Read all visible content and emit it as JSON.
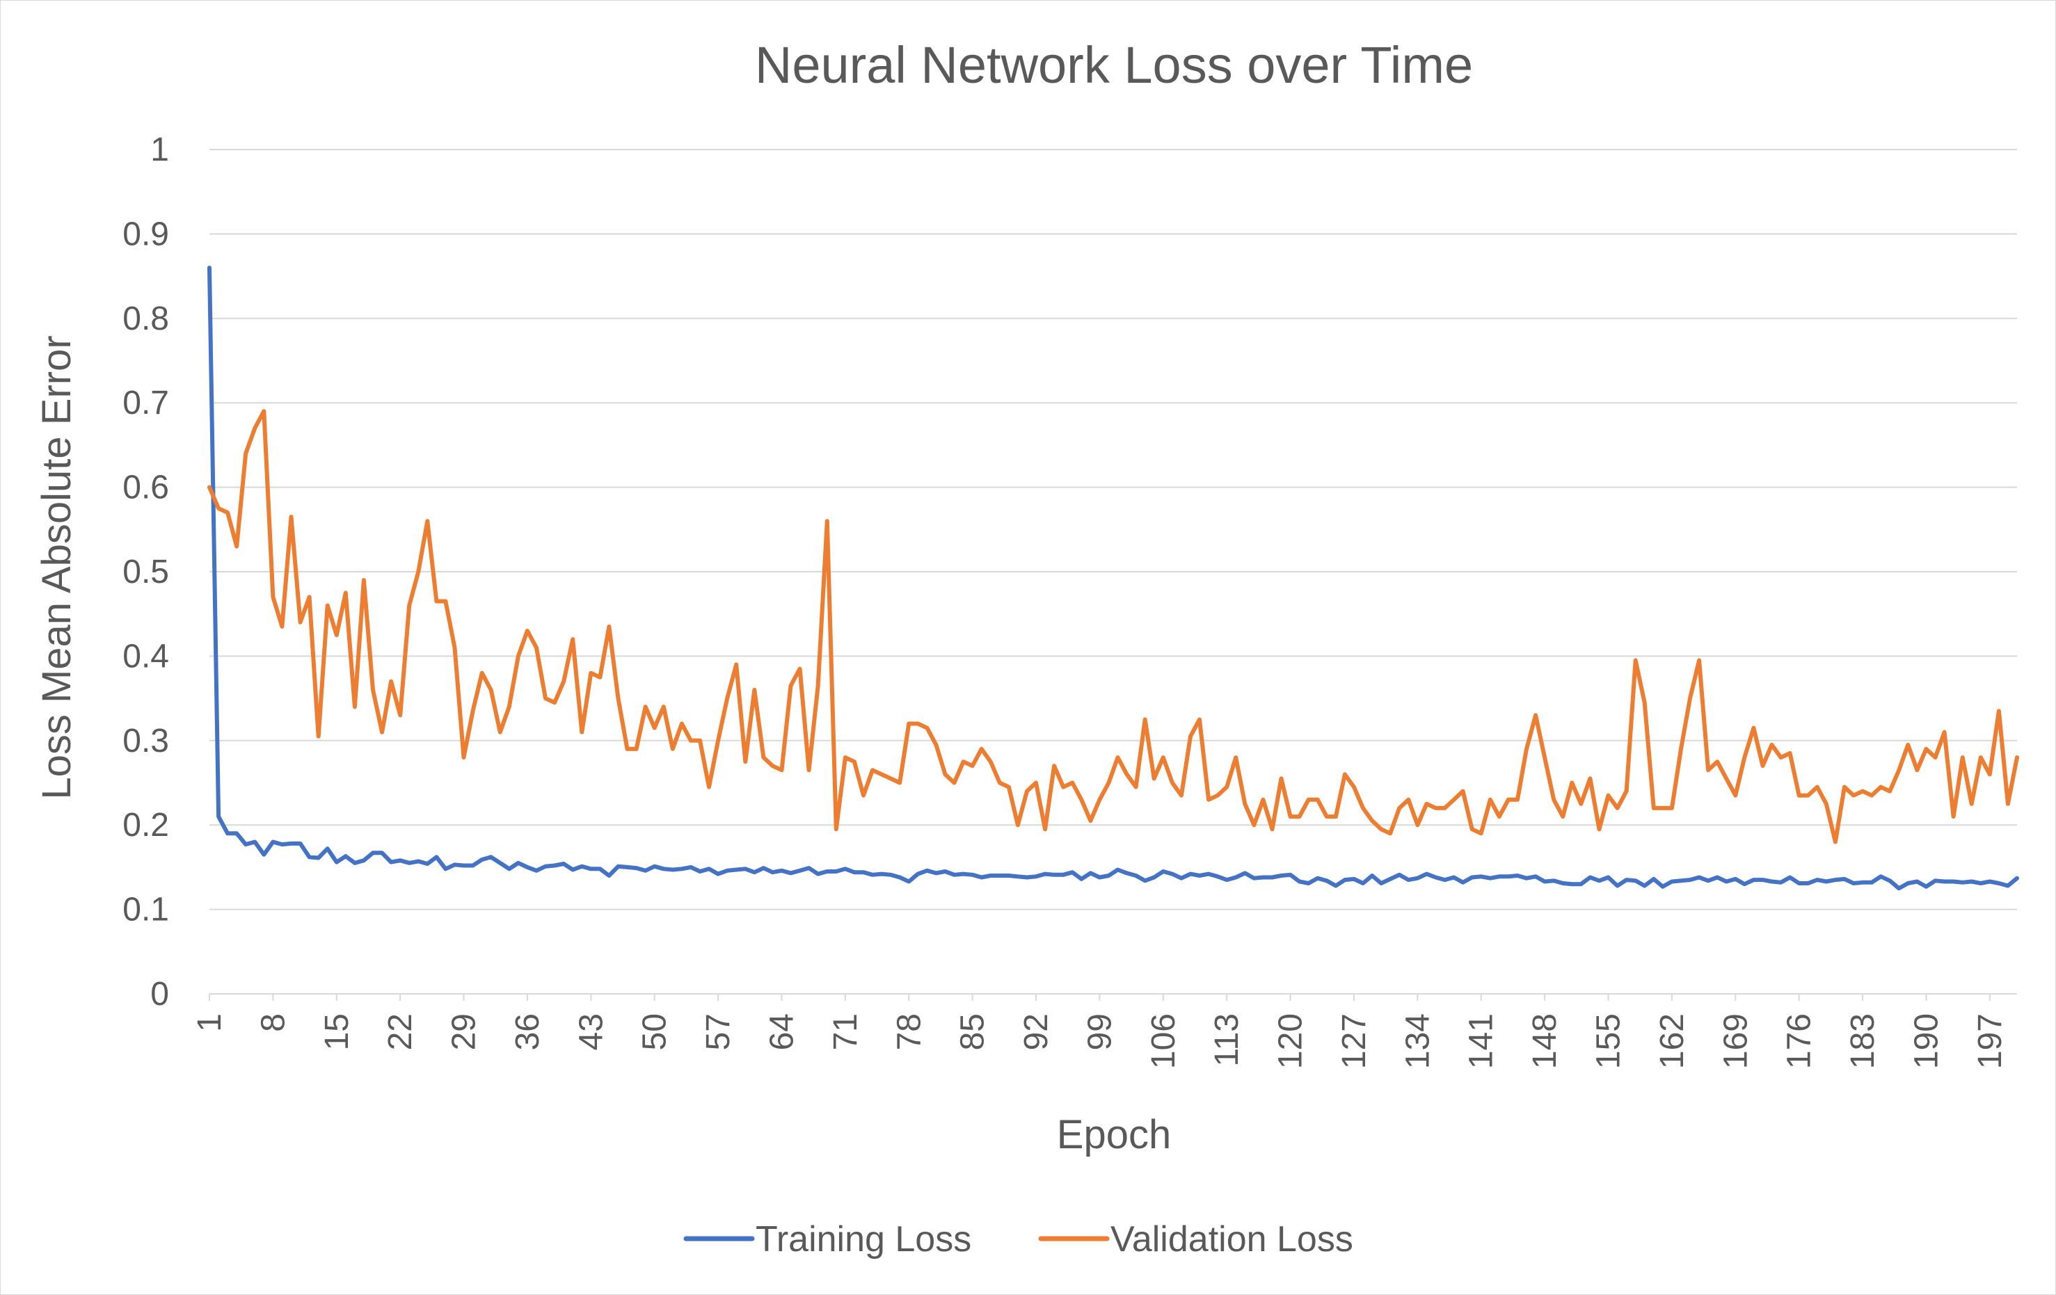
{
  "chart_data": {
    "type": "line",
    "title": "Neural Network Loss over Time",
    "xlabel": "Epoch",
    "ylabel": "Loss Mean Absolute Error",
    "x_range": [
      1,
      200
    ],
    "ylim": [
      0,
      1
    ],
    "y_ticks": [
      "0",
      "0.1",
      "0.2",
      "0.3",
      "0.4",
      "0.5",
      "0.6",
      "0.7",
      "0.8",
      "0.9",
      "1"
    ],
    "x_tick_labels": [
      1,
      8,
      15,
      22,
      29,
      36,
      43,
      50,
      57,
      64,
      71,
      78,
      85,
      92,
      99,
      106,
      113,
      120,
      127,
      134,
      141,
      148,
      155,
      162,
      169,
      176,
      183,
      190,
      197
    ],
    "grid": "horizontal",
    "legend_position": "bottom",
    "series": [
      {
        "name": "Training Loss",
        "color": "#4472c4",
        "values": [
          0.86,
          0.21,
          0.19,
          0.19,
          0.177,
          0.18,
          0.165,
          0.18,
          0.177,
          0.178,
          0.178,
          0.162,
          0.161,
          0.172,
          0.156,
          0.163,
          0.155,
          0.158,
          0.167,
          0.167,
          0.156,
          0.158,
          0.155,
          0.157,
          0.154,
          0.162,
          0.148,
          0.153,
          0.152,
          0.152,
          0.159,
          0.162,
          0.155,
          0.148,
          0.155,
          0.15,
          0.146,
          0.151,
          0.152,
          0.154,
          0.147,
          0.151,
          0.148,
          0.148,
          0.14,
          0.151,
          0.15,
          0.149,
          0.146,
          0.151,
          0.148,
          0.147,
          0.148,
          0.15,
          0.145,
          0.148,
          0.142,
          0.146,
          0.147,
          0.148,
          0.144,
          0.149,
          0.144,
          0.146,
          0.143,
          0.146,
          0.149,
          0.142,
          0.145,
          0.145,
          0.148,
          0.144,
          0.144,
          0.141,
          0.142,
          0.141,
          0.138,
          0.133,
          0.142,
          0.146,
          0.143,
          0.145,
          0.141,
          0.142,
          0.141,
          0.138,
          0.14,
          0.14,
          0.14,
          0.139,
          0.138,
          0.139,
          0.142,
          0.141,
          0.141,
          0.144,
          0.136,
          0.143,
          0.138,
          0.14,
          0.147,
          0.143,
          0.14,
          0.134,
          0.138,
          0.145,
          0.142,
          0.137,
          0.142,
          0.14,
          0.142,
          0.139,
          0.135,
          0.138,
          0.143,
          0.137,
          0.138,
          0.138,
          0.14,
          0.141,
          0.133,
          0.131,
          0.137,
          0.134,
          0.128,
          0.135,
          0.136,
          0.131,
          0.14,
          0.131,
          0.136,
          0.141,
          0.135,
          0.137,
          0.142,
          0.138,
          0.135,
          0.138,
          0.132,
          0.138,
          0.139,
          0.137,
          0.139,
          0.139,
          0.14,
          0.137,
          0.139,
          0.133,
          0.134,
          0.131,
          0.13,
          0.13,
          0.138,
          0.134,
          0.138,
          0.128,
          0.135,
          0.134,
          0.128,
          0.136,
          0.127,
          0.133,
          0.134,
          0.135,
          0.138,
          0.134,
          0.138,
          0.133,
          0.136,
          0.13,
          0.135,
          0.135,
          0.133,
          0.132,
          0.138,
          0.131,
          0.131,
          0.135,
          0.133,
          0.135,
          0.136,
          0.131,
          0.132,
          0.132,
          0.139,
          0.134,
          0.125,
          0.131,
          0.133,
          0.127,
          0.134,
          0.133,
          0.133,
          0.132,
          0.133,
          0.131,
          0.133,
          0.131,
          0.128,
          0.137
        ]
      },
      {
        "name": "Validation Loss",
        "color": "#ed7d31",
        "values": [
          0.6,
          0.575,
          0.57,
          0.53,
          0.64,
          0.67,
          0.69,
          0.47,
          0.435,
          0.565,
          0.44,
          0.47,
          0.305,
          0.46,
          0.425,
          0.475,
          0.34,
          0.49,
          0.36,
          0.31,
          0.37,
          0.33,
          0.46,
          0.5,
          0.56,
          0.465,
          0.465,
          0.41,
          0.28,
          0.335,
          0.38,
          0.36,
          0.31,
          0.34,
          0.4,
          0.43,
          0.41,
          0.35,
          0.345,
          0.37,
          0.42,
          0.31,
          0.38,
          0.375,
          0.435,
          0.35,
          0.29,
          0.29,
          0.34,
          0.315,
          0.34,
          0.29,
          0.32,
          0.3,
          0.3,
          0.245,
          0.3,
          0.35,
          0.39,
          0.275,
          0.36,
          0.28,
          0.27,
          0.265,
          0.365,
          0.385,
          0.265,
          0.365,
          0.56,
          0.195,
          0.28,
          0.275,
          0.235,
          0.265,
          0.26,
          0.255,
          0.25,
          0.32,
          0.32,
          0.315,
          0.295,
          0.26,
          0.25,
          0.275,
          0.27,
          0.29,
          0.275,
          0.25,
          0.245,
          0.2,
          0.24,
          0.25,
          0.195,
          0.27,
          0.245,
          0.25,
          0.23,
          0.205,
          0.23,
          0.25,
          0.28,
          0.26,
          0.245,
          0.325,
          0.255,
          0.28,
          0.25,
          0.235,
          0.305,
          0.325,
          0.23,
          0.235,
          0.245,
          0.28,
          0.225,
          0.2,
          0.23,
          0.195,
          0.255,
          0.21,
          0.21,
          0.23,
          0.23,
          0.21,
          0.21,
          0.26,
          0.245,
          0.22,
          0.205,
          0.195,
          0.19,
          0.22,
          0.23,
          0.2,
          0.225,
          0.22,
          0.22,
          0.23,
          0.24,
          0.195,
          0.19,
          0.23,
          0.21,
          0.23,
          0.23,
          0.29,
          0.33,
          0.28,
          0.23,
          0.21,
          0.25,
          0.225,
          0.255,
          0.195,
          0.235,
          0.22,
          0.24,
          0.395,
          0.345,
          0.22,
          0.22,
          0.22,
          0.29,
          0.35,
          0.395,
          0.265,
          0.275,
          0.255,
          0.235,
          0.28,
          0.315,
          0.27,
          0.295,
          0.28,
          0.285,
          0.235,
          0.235,
          0.245,
          0.225,
          0.18,
          0.245,
          0.235,
          0.24,
          0.235,
          0.245,
          0.24,
          0.265,
          0.295,
          0.265,
          0.29,
          0.28,
          0.31,
          0.21,
          0.28,
          0.225,
          0.28,
          0.26,
          0.335,
          0.225,
          0.28
        ]
      }
    ]
  }
}
